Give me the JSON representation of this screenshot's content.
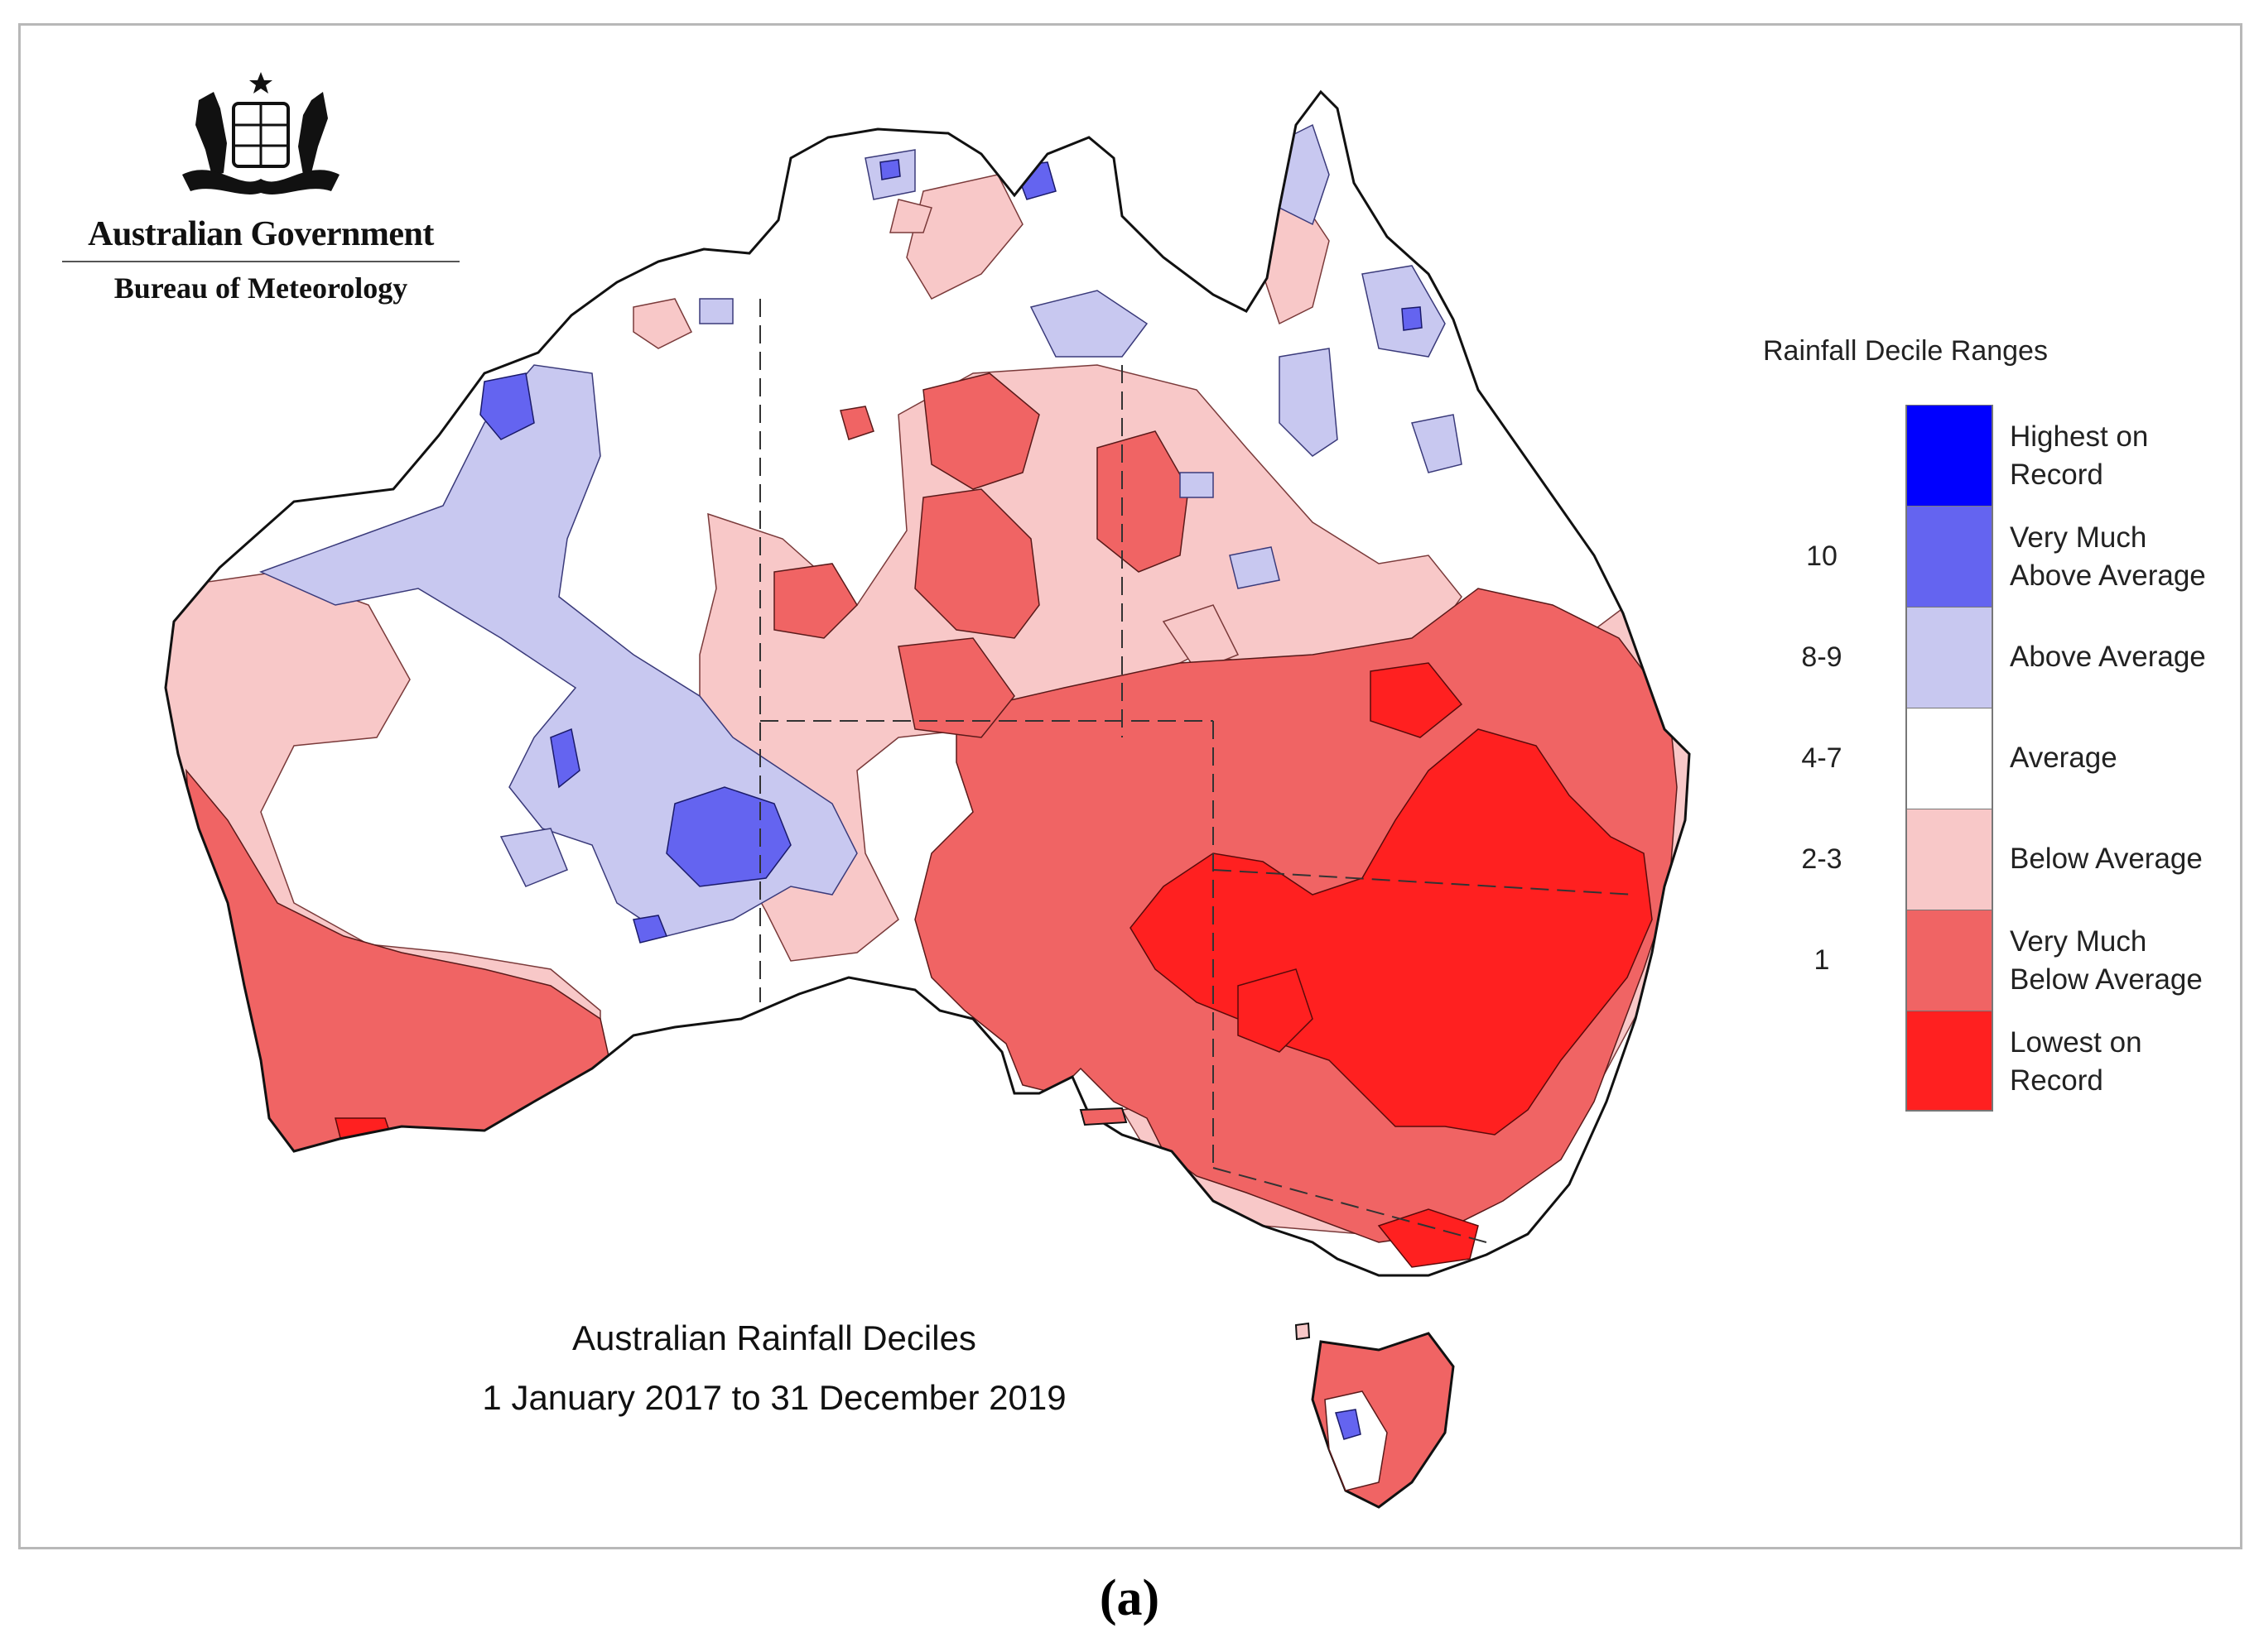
{
  "logo": {
    "government": "Australian Government",
    "bureau": "Bureau of Meteorology",
    "emblem": "commonwealth-coat-of-arms-icon"
  },
  "map": {
    "title_line1": "Australian Rainfall Deciles",
    "title_line2": "1 January 2017 to 31 December 2019",
    "region": "Australia",
    "overall_pattern": "Below to lowest-on-record rainfall across the east and south-east; above average across parts of Western Australia and the north"
  },
  "legend": {
    "title": "Rainfall Decile Ranges",
    "items": [
      {
        "decile": "",
        "label_line1": "Highest on",
        "label_line2": "Record",
        "color": "#0000ff"
      },
      {
        "decile": "10",
        "label_line1": "Very Much",
        "label_line2": "Above Average",
        "color": "#6464f0"
      },
      {
        "decile": "8-9",
        "label_line1": "Above Average",
        "label_line2": "",
        "color": "#c8c8f0"
      },
      {
        "decile": "4-7",
        "label_line1": "Average",
        "label_line2": "",
        "color": "#ffffff"
      },
      {
        "decile": "2-3",
        "label_line1": "Below Average",
        "label_line2": "",
        "color": "#f8c8c8"
      },
      {
        "decile": "1",
        "label_line1": "Very Much",
        "label_line2": "Below Average",
        "color": "#f06464"
      },
      {
        "decile": "",
        "label_line1": "Lowest on",
        "label_line2": "Record",
        "color": "#ff2020"
      }
    ]
  },
  "caption": "(a)"
}
